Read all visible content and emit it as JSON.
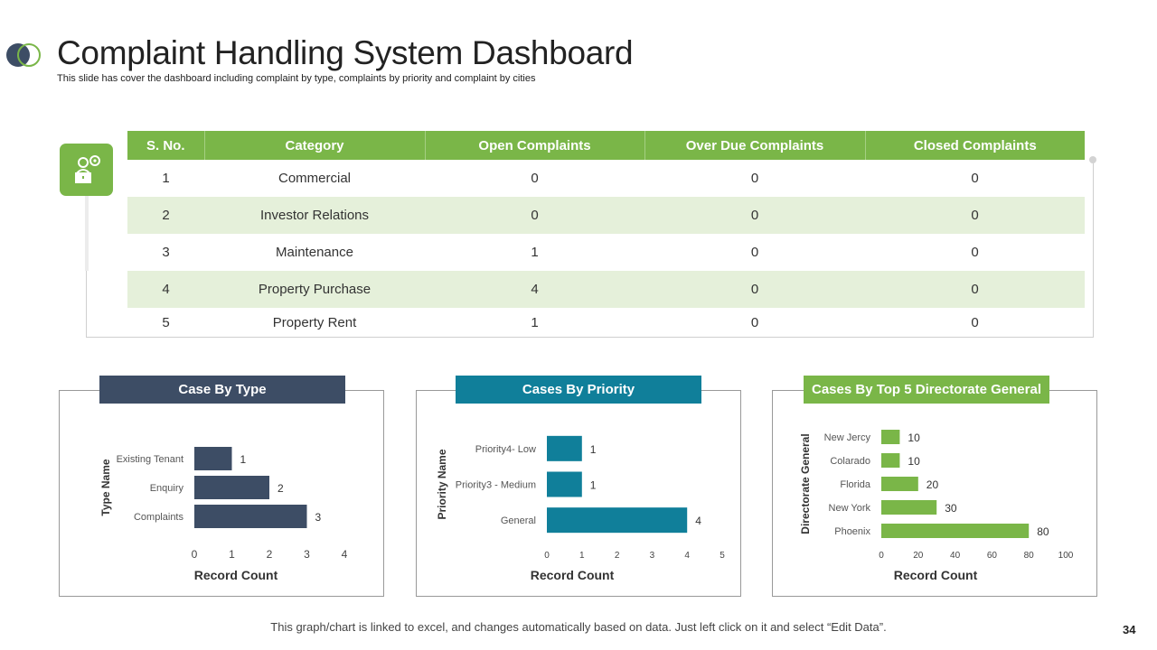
{
  "title": "Complaint Handling System Dashboard",
  "subtitle": "This slide has cover the dashboard including complaint  by type, complaints  by priority and complaint  by cities",
  "colors": {
    "green": "#7ab648",
    "navy": "#3d4d65",
    "teal": "#107f9a",
    "light_green": "#e5f0da"
  },
  "table": {
    "headers": [
      "S. No.",
      "Category",
      "Open Complaints",
      "Over Due Complaints",
      "Closed Complaints"
    ],
    "rows": [
      [
        "1",
        "Commercial",
        "0",
        "0",
        "0"
      ],
      [
        "2",
        "Investor Relations",
        "0",
        "0",
        "0"
      ],
      [
        "3",
        "Maintenance",
        "1",
        "0",
        "0"
      ],
      [
        "4",
        "Property Purchase",
        "4",
        "0",
        "0"
      ],
      [
        "5",
        "Property Rent",
        "1",
        "0",
        "0"
      ]
    ]
  },
  "chart_data": [
    {
      "type": "bar",
      "orientation": "horizontal",
      "title": "Case By Type",
      "categories": [
        "Existing Tenant",
        "Enquiry",
        "Complaints"
      ],
      "values": [
        1,
        2,
        3
      ],
      "xlabel": "Record Count",
      "ylabel": "Type Name",
      "xlim": [
        0,
        4
      ],
      "xticks": [
        0,
        1,
        2,
        3,
        4
      ],
      "color": "#3d4d65"
    },
    {
      "type": "bar",
      "orientation": "horizontal",
      "title": "Cases By Priority",
      "categories": [
        "Priority4- Low",
        "Priority3 - Medium",
        "General"
      ],
      "values": [
        1,
        1,
        4
      ],
      "xlabel": "Record Count",
      "ylabel": "Priority Name",
      "xlim": [
        0,
        5
      ],
      "xticks": [
        0,
        1,
        2,
        3,
        4,
        5
      ],
      "color": "#107f9a"
    },
    {
      "type": "bar",
      "orientation": "horizontal",
      "title": "Cases By Top 5 Directorate General",
      "categories": [
        "New Jercy",
        "Colarado",
        "Florida",
        "New York",
        "Phoenix"
      ],
      "values": [
        10,
        10,
        20,
        30,
        80
      ],
      "xlabel": "Record Count",
      "ylabel": "Directorate General",
      "xlim": [
        0,
        100
      ],
      "xticks": [
        0,
        20,
        40,
        60,
        80,
        100
      ],
      "color": "#7ab648"
    }
  ],
  "footer": "This graph/chart is linked to excel, and changes automatically based on data. Just left click on it and select “Edit Data”.",
  "page_number": "34"
}
